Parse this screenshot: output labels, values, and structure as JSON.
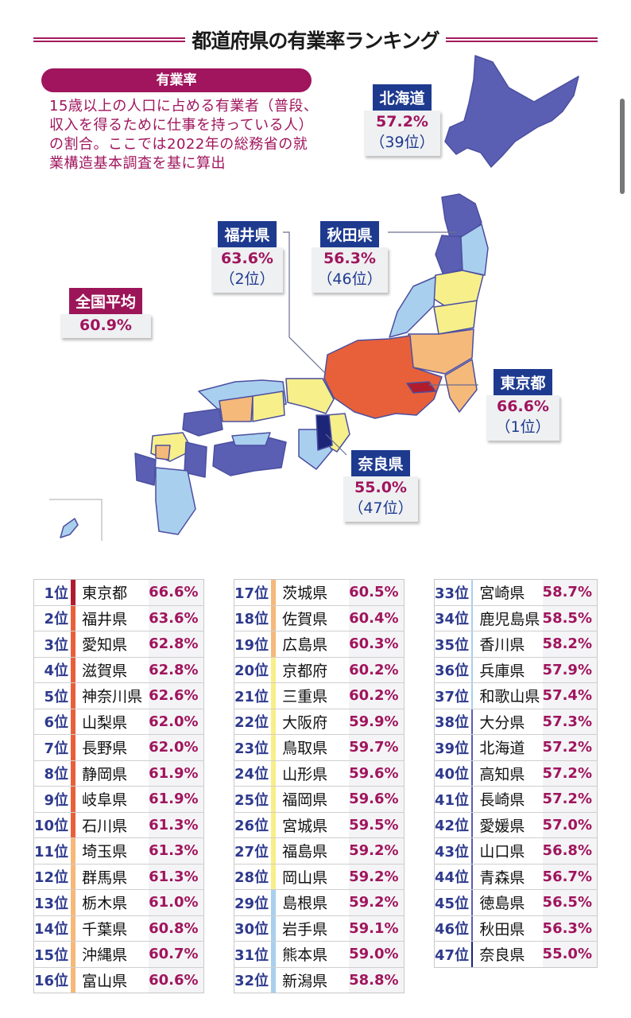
{
  "title": "都道府県の有業率ランキング",
  "definition": {
    "label": "有業率",
    "text": "15歳以上の人口に占める有業者（普段、収入を得るために仕事を持っている人）の割合。ここでは2022年の総務省の就業構造基本調査を基に算出"
  },
  "callouts": {
    "hokkaido": {
      "name": "北海道",
      "pct": "57.2%",
      "rank": "（39位）"
    },
    "fukui": {
      "name": "福井県",
      "pct": "63.6%",
      "rank": "（2位）"
    },
    "akita": {
      "name": "秋田県",
      "pct": "56.3%",
      "rank": "（46位）"
    },
    "national": {
      "name": "全国平均",
      "pct": "60.9%"
    },
    "tokyo": {
      "name": "東京都",
      "pct": "66.6%",
      "rank": "（1位）"
    },
    "nara": {
      "name": "奈良県",
      "pct": "55.0%",
      "rank": "（47位）"
    }
  },
  "colors": {
    "band1": "#b01c2e",
    "band2": "#e8603a",
    "band3": "#f5b97a",
    "band4": "#f7ef8a",
    "band5": "#a9cfee",
    "band6": "#5a5fb3",
    "band7": "#1c2578",
    "accent": "#a0155d",
    "navy": "#1e3a8f"
  },
  "chart_data": {
    "type": "table",
    "title": "都道府県の有業率ランキング",
    "unit": "%",
    "national_average": 60.9,
    "rows": [
      {
        "rank": "1位",
        "name": "東京都",
        "value": "66.6%"
      },
      {
        "rank": "2位",
        "name": "福井県",
        "value": "63.6%"
      },
      {
        "rank": "3位",
        "name": "愛知県",
        "value": "62.8%"
      },
      {
        "rank": "4位",
        "name": "滋賀県",
        "value": "62.8%"
      },
      {
        "rank": "5位",
        "name": "神奈川県",
        "value": "62.6%"
      },
      {
        "rank": "6位",
        "name": "山梨県",
        "value": "62.0%"
      },
      {
        "rank": "7位",
        "name": "長野県",
        "value": "62.0%"
      },
      {
        "rank": "8位",
        "name": "静岡県",
        "value": "61.9%"
      },
      {
        "rank": "9位",
        "name": "岐阜県",
        "value": "61.9%"
      },
      {
        "rank": "10位",
        "name": "石川県",
        "value": "61.3%"
      },
      {
        "rank": "11位",
        "name": "埼玉県",
        "value": "61.3%"
      },
      {
        "rank": "12位",
        "name": "群馬県",
        "value": "61.3%"
      },
      {
        "rank": "13位",
        "name": "栃木県",
        "value": "61.0%"
      },
      {
        "rank": "14位",
        "name": "千葉県",
        "value": "60.8%"
      },
      {
        "rank": "15位",
        "name": "沖縄県",
        "value": "60.7%"
      },
      {
        "rank": "16位",
        "name": "富山県",
        "value": "60.6%"
      },
      {
        "rank": "17位",
        "name": "茨城県",
        "value": "60.5%"
      },
      {
        "rank": "18位",
        "name": "佐賀県",
        "value": "60.4%"
      },
      {
        "rank": "19位",
        "name": "広島県",
        "value": "60.3%"
      },
      {
        "rank": "20位",
        "name": "京都府",
        "value": "60.2%"
      },
      {
        "rank": "21位",
        "name": "三重県",
        "value": "60.2%"
      },
      {
        "rank": "22位",
        "name": "大阪府",
        "value": "59.9%"
      },
      {
        "rank": "23位",
        "name": "鳥取県",
        "value": "59.7%"
      },
      {
        "rank": "24位",
        "name": "山形県",
        "value": "59.6%"
      },
      {
        "rank": "25位",
        "name": "福岡県",
        "value": "59.6%"
      },
      {
        "rank": "26位",
        "name": "宮城県",
        "value": "59.5%"
      },
      {
        "rank": "27位",
        "name": "福島県",
        "value": "59.2%"
      },
      {
        "rank": "28位",
        "name": "岡山県",
        "value": "59.2%"
      },
      {
        "rank": "29位",
        "name": "島根県",
        "value": "59.2%"
      },
      {
        "rank": "30位",
        "name": "岩手県",
        "value": "59.1%"
      },
      {
        "rank": "31位",
        "name": "熊本県",
        "value": "59.0%"
      },
      {
        "rank": "32位",
        "name": "新潟県",
        "value": "58.8%"
      },
      {
        "rank": "33位",
        "name": "宮崎県",
        "value": "58.7%"
      },
      {
        "rank": "34位",
        "name": "鹿児島県",
        "value": "58.5%"
      },
      {
        "rank": "35位",
        "name": "香川県",
        "value": "58.2%"
      },
      {
        "rank": "36位",
        "name": "兵庫県",
        "value": "57.9%"
      },
      {
        "rank": "37位",
        "name": "和歌山県",
        "value": "57.4%"
      },
      {
        "rank": "38位",
        "name": "大分県",
        "value": "57.3%"
      },
      {
        "rank": "39位",
        "name": "北海道",
        "value": "57.2%"
      },
      {
        "rank": "40位",
        "name": "高知県",
        "value": "57.2%"
      },
      {
        "rank": "41位",
        "name": "長崎県",
        "value": "57.2%"
      },
      {
        "rank": "42位",
        "name": "愛媛県",
        "value": "57.0%"
      },
      {
        "rank": "43位",
        "name": "山口県",
        "value": "56.8%"
      },
      {
        "rank": "44位",
        "name": "青森県",
        "value": "56.7%"
      },
      {
        "rank": "45位",
        "name": "徳島県",
        "value": "56.5%"
      },
      {
        "rank": "46位",
        "name": "秋田県",
        "value": "56.3%"
      },
      {
        "rank": "47位",
        "name": "奈良県",
        "value": "55.0%"
      }
    ]
  }
}
